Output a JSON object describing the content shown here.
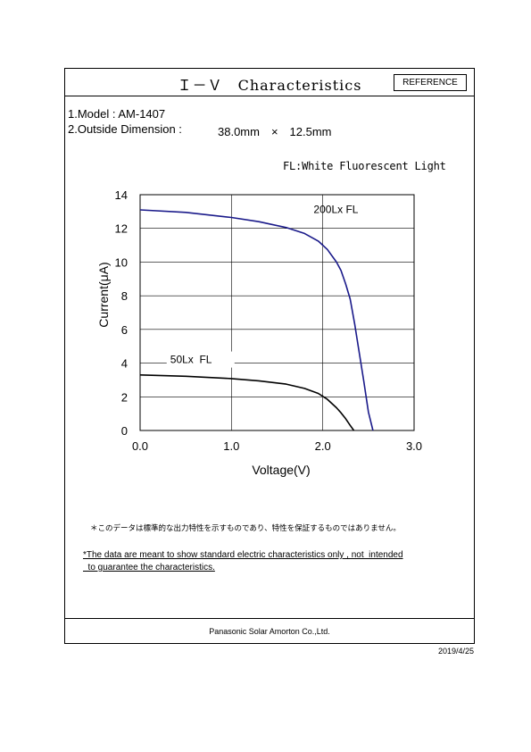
{
  "header": {
    "title": "Ｉ－Ｖ　Characteristics",
    "badge": "REFERENCE"
  },
  "specs": {
    "model": "1.Model : AM-1407",
    "dimension_label": "2.Outside Dimension :",
    "dimension_value": "38.0mm　×　12.5mm"
  },
  "fl_note": "FL:White Fluorescent Light",
  "chart_data": {
    "type": "line",
    "xlabel": "Voltage(V)",
    "ylabel": "Current(μA)",
    "xlim": [
      0,
      3
    ],
    "ylim": [
      0,
      14
    ],
    "x_ticks": [
      "0.0",
      "1.0",
      "2.0",
      "3.0"
    ],
    "y_ticks": [
      "0",
      "2",
      "4",
      "6",
      "8",
      "10",
      "12",
      "14"
    ],
    "grid": true,
    "series": [
      {
        "name": "200Lx FL",
        "color": "#1a1a8a",
        "x": [
          0,
          0.5,
          1.0,
          1.3,
          1.6,
          1.8,
          1.95,
          2.05,
          2.15,
          2.2,
          2.25,
          2.3,
          2.35,
          2.4,
          2.45,
          2.5,
          2.55
        ],
        "y": [
          13.1,
          12.95,
          12.65,
          12.4,
          12.05,
          11.7,
          11.25,
          10.75,
          10.0,
          9.5,
          8.7,
          7.8,
          6.3,
          4.6,
          2.9,
          1.1,
          0
        ]
      },
      {
        "name": "50Lx  FL",
        "color": "#000000",
        "x": [
          0,
          0.5,
          1.0,
          1.3,
          1.6,
          1.8,
          1.95,
          2.05,
          2.15,
          2.2,
          2.25,
          2.3,
          2.34
        ],
        "y": [
          3.3,
          3.22,
          3.08,
          2.95,
          2.75,
          2.5,
          2.2,
          1.85,
          1.35,
          1.05,
          0.7,
          0.3,
          0
        ]
      }
    ]
  },
  "notes": {
    "jp": "＊このデータは標準的な出力特性を示すものであり、特性を保証するものではありません。",
    "en_line1": "*The data are meant to show standard electric characteristics only , not  intended",
    "en_line2": "  to guarantee the characteristics."
  },
  "footer": "Panasonic Solar Amorton Co.,Ltd.",
  "date": "2019/4/25"
}
